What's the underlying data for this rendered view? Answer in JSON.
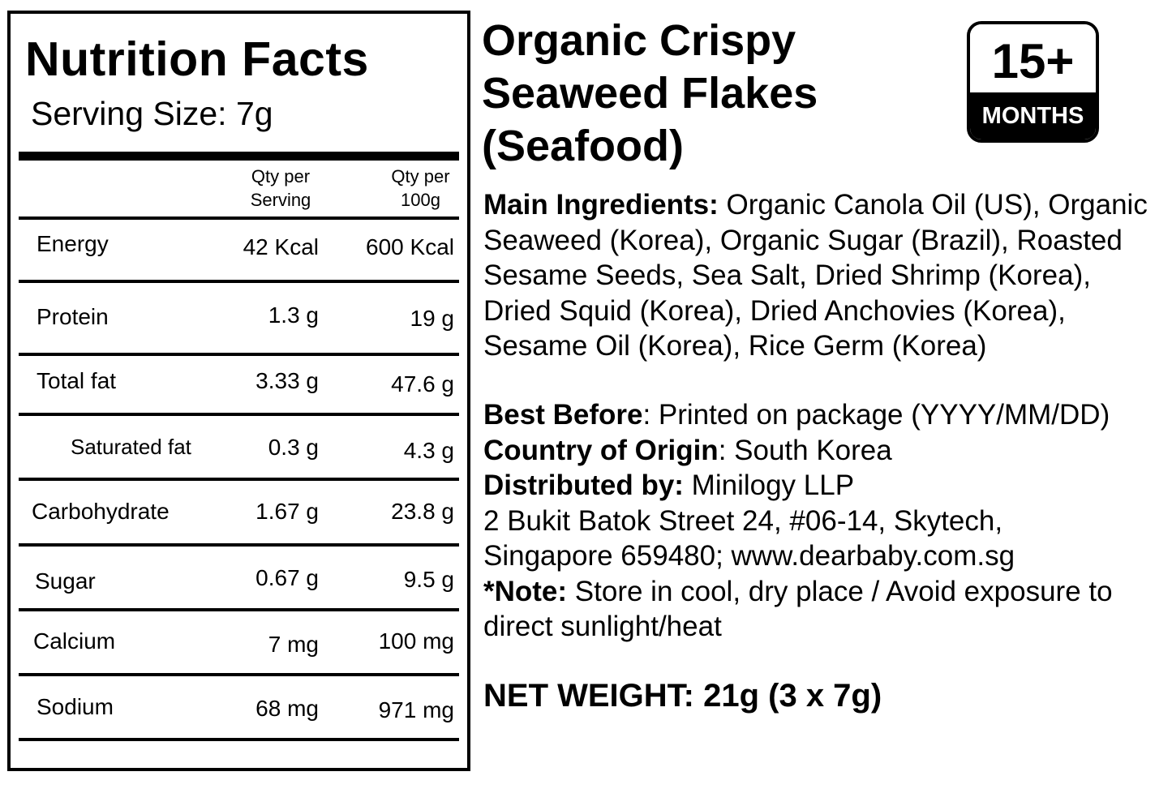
{
  "nutrition": {
    "title": "Nutrition Facts",
    "serving_size": "Serving Size: 7g",
    "col_per_serving": [
      "Qty per",
      "Serving"
    ],
    "col_per_100g": [
      "Qty per",
      "100g"
    ],
    "rows": [
      {
        "label": "Energy",
        "per_serving": "42 Kcal",
        "per_100g": "600 Kcal"
      },
      {
        "label": "Protein",
        "per_serving": "1.3 g",
        "per_100g": "19 g"
      },
      {
        "label": "Total fat",
        "per_serving": "3.33 g",
        "per_100g": "47.6 g"
      },
      {
        "label": "Saturated fat",
        "per_serving": "0.3 g",
        "per_100g": "4.3 g"
      },
      {
        "label": "Carbohydrate",
        "per_serving": "1.67 g",
        "per_100g": "23.8 g"
      },
      {
        "label": "Sugar",
        "per_serving": "0.67 g",
        "per_100g": "9.5 g"
      },
      {
        "label": "Calcium",
        "per_serving": "7 mg",
        "per_100g": "100 mg"
      },
      {
        "label": "Sodium",
        "per_serving": "68 mg",
        "per_100g": "971 mg"
      }
    ]
  },
  "product": {
    "title_lines": [
      "Organic Crispy",
      "Seaweed Flakes",
      "(Seafood)"
    ],
    "age_badge": {
      "value": "15+",
      "unit": "MONTHS"
    }
  },
  "ingredients": {
    "label": "Main Ingredients:",
    "text": " Organic Canola Oil (US), Organic Seaweed (Korea), Organic Sugar (Brazil), Roasted Sesame Seeds, Sea Salt, Dried Shrimp (Korea), Dried Squid (Korea), Dried Anchovies (Korea), Sesame Oil (Korea), Rice Germ (Korea)"
  },
  "details": {
    "best_before_label": "Best Before",
    "best_before_text": ": Printed on package (YYYY/MM/DD)",
    "origin_label": "Country of Origin",
    "origin_text": ": South Korea",
    "distributor_label": "Distributed by:",
    "distributor_text": " Minilogy LLP",
    "address_line1": "2 Bukit Batok Street 24, #06-14, Skytech,",
    "address_line2": "Singapore 659480; www.dearbaby.com.sg",
    "note_label": "*Note:",
    "note_text": " Store in cool, dry place / Avoid exposure to direct sunlight/heat"
  },
  "net_weight": "NET WEIGHT: 21g (3 x 7g)"
}
